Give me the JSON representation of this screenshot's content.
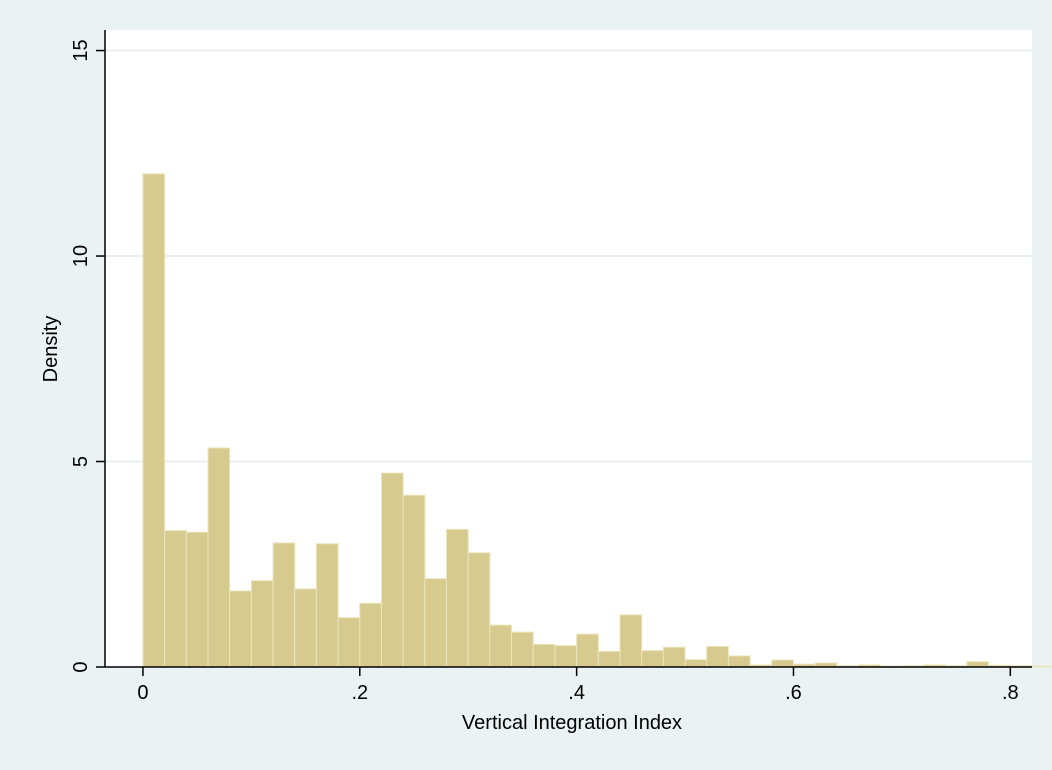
{
  "chart_data": {
    "type": "bar",
    "subtype": "histogram",
    "xlabel": "Vertical Integration Index",
    "ylabel": "Density",
    "xlim": [
      -0.035,
      0.82
    ],
    "ylim": [
      0,
      15.5
    ],
    "x_ticks": [
      {
        "value": 0,
        "label": "0"
      },
      {
        "value": 0.2,
        "label": ".2"
      },
      {
        "value": 0.4,
        "label": ".4"
      },
      {
        "value": 0.6,
        "label": ".6"
      },
      {
        "value": 0.8,
        "label": ".8"
      }
    ],
    "y_ticks": [
      {
        "value": 0,
        "label": "0"
      },
      {
        "value": 5,
        "label": "5"
      },
      {
        "value": 10,
        "label": "10"
      },
      {
        "value": 15,
        "label": "15"
      }
    ],
    "grid": true,
    "bin_start": 0,
    "bin_width": 0.02,
    "values": [
      12.0,
      3.32,
      3.28,
      5.33,
      1.85,
      2.1,
      3.02,
      1.9,
      3.0,
      1.2,
      1.55,
      4.72,
      4.18,
      2.15,
      3.35,
      2.78,
      1.02,
      0.85,
      0.55,
      0.52,
      0.8,
      0.38,
      1.27,
      0.4,
      0.48,
      0.18,
      0.5,
      0.27,
      0.05,
      0.17,
      0.07,
      0.1,
      0.03,
      0.05,
      0.02,
      0.03,
      0.05,
      0.03,
      0.13,
      0.04,
      0.03,
      0.02,
      0.02,
      0.01,
      0.02,
      0.01,
      0.01,
      0.01,
      0.02,
      0.01
    ],
    "colors": {
      "bar_fill": "#d6ca8f",
      "bar_stroke": "#ece5bc",
      "plot_bg": "#ffffff",
      "outer_bg": "#eaf2f3",
      "grid": "#e3ecee",
      "axis": "#000000"
    }
  }
}
